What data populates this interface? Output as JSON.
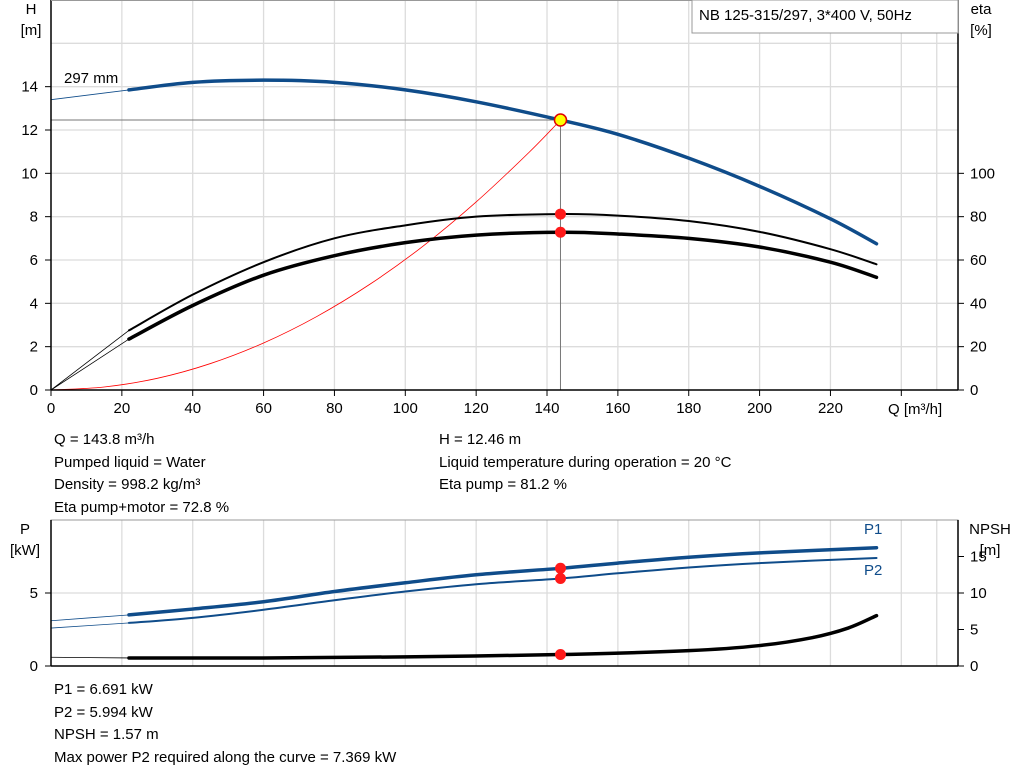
{
  "chart_data": [
    {
      "type": "line",
      "title": "NB 125-315/297, 3*400 V, 50Hz",
      "xlabel": "Q [m³/h]",
      "ylabel": "H\n[m]",
      "ylabel_right": "eta\n[%]",
      "xlim": [
        0,
        256
      ],
      "ylim": [
        0,
        18
      ],
      "ylim_right": [
        0,
        180
      ],
      "grid": true,
      "x_ticks": [
        "0",
        "20",
        "40",
        "60",
        "80",
        "100",
        "120",
        "140",
        "160",
        "180",
        "200",
        "220"
      ],
      "y_ticks": [
        "0",
        "2",
        "4",
        "6",
        "8",
        "10",
        "12",
        "14"
      ],
      "y_right_ticks": [
        "0",
        "20",
        "40",
        "60",
        "80",
        "100"
      ],
      "curve_label": "297 mm",
      "duty_point": {
        "Q": 143.8,
        "H": 12.46,
        "eta_pump": 81.2,
        "eta_pump_motor": 72.8
      },
      "series": [
        {
          "axis": "left",
          "color": "#0f4c8a",
          "x": [
            0,
            22,
            40,
            60,
            80,
            100,
            120,
            143.8,
            160,
            180,
            200,
            220,
            233
          ],
          "y": [
            13.4,
            13.85,
            14.2,
            14.3,
            14.2,
            13.85,
            13.3,
            12.46,
            11.8,
            10.7,
            9.4,
            7.9,
            6.75
          ]
        },
        {
          "axis": "right",
          "color": "#000000",
          "x": [
            0,
            22,
            40,
            60,
            80,
            100,
            120,
            143.8,
            160,
            180,
            200,
            220,
            233
          ],
          "y": [
            0,
            27.5,
            44,
            59,
            70,
            76,
            80,
            81.2,
            80.5,
            78,
            73,
            65,
            58
          ]
        },
        {
          "axis": "right",
          "color": "#000000",
          "x": [
            0,
            22,
            40,
            60,
            80,
            100,
            120,
            143.8,
            160,
            180,
            200,
            220,
            233
          ],
          "y": [
            0,
            23.5,
            39,
            53,
            62,
            68,
            71.5,
            72.8,
            72,
            70,
            66,
            59,
            52
          ]
        },
        {
          "axis": "left",
          "color": "#ff0000",
          "x": [
            0,
            15,
            30,
            45,
            60,
            75,
            90,
            105,
            120,
            135,
            143.8
          ],
          "y": [
            0,
            0.14,
            0.54,
            1.22,
            2.17,
            3.39,
            4.88,
            6.64,
            8.68,
            10.98,
            12.46
          ]
        }
      ]
    },
    {
      "type": "line",
      "ylabel": "P\n[kW]",
      "ylabel_right": "NPSH\n[m]",
      "xlim": [
        0,
        256
      ],
      "ylim": [
        0,
        10
      ],
      "ylim_right": [
        0,
        20
      ],
      "grid": true,
      "y_ticks": [
        "0",
        "5"
      ],
      "y_right_ticks": [
        "0",
        "5",
        "10",
        "15"
      ],
      "duty_point": {
        "Q": 143.8,
        "P1": 6.691,
        "P2": 5.994,
        "NPSH": 1.57
      },
      "series": [
        {
          "name": "P1",
          "axis": "left",
          "color": "#0f4c8a",
          "x": [
            0,
            22,
            40,
            60,
            80,
            100,
            120,
            143.8,
            160,
            180,
            200,
            233
          ],
          "y": [
            3.1,
            3.5,
            3.9,
            4.4,
            5.1,
            5.7,
            6.25,
            6.691,
            7.05,
            7.45,
            7.75,
            8.1
          ]
        },
        {
          "name": "P2",
          "axis": "left",
          "color": "#0f4c8a",
          "x": [
            0,
            22,
            40,
            60,
            80,
            100,
            120,
            143.8,
            160,
            180,
            200,
            233
          ],
          "y": [
            2.6,
            2.95,
            3.3,
            3.85,
            4.5,
            5.1,
            5.6,
            5.994,
            6.35,
            6.75,
            7.05,
            7.4
          ]
        },
        {
          "axis": "right",
          "color": "#000000",
          "x": [
            0,
            22,
            60,
            100,
            143.8,
            180,
            200,
            215,
            225,
            233
          ],
          "y": [
            1.2,
            1.1,
            1.1,
            1.25,
            1.57,
            2.1,
            2.8,
            3.9,
            5.2,
            6.9
          ]
        }
      ]
    }
  ],
  "info_top": {
    "left": [
      "Q = 143.8 m³/h",
      "Pumped liquid = Water",
      "Density = 998.2 kg/m³",
      "Eta pump+motor = 72.8 %"
    ],
    "right": [
      "H = 12.46 m",
      "Liquid temperature during operation = 20 °C",
      "Eta pump = 81.2 %"
    ]
  },
  "info_bottom": [
    "P1 = 6.691 kW",
    "P2 = 5.994 kW",
    "NPSH = 1.57 m",
    "Max power P2 required along the curve = 7.369 kW"
  ]
}
